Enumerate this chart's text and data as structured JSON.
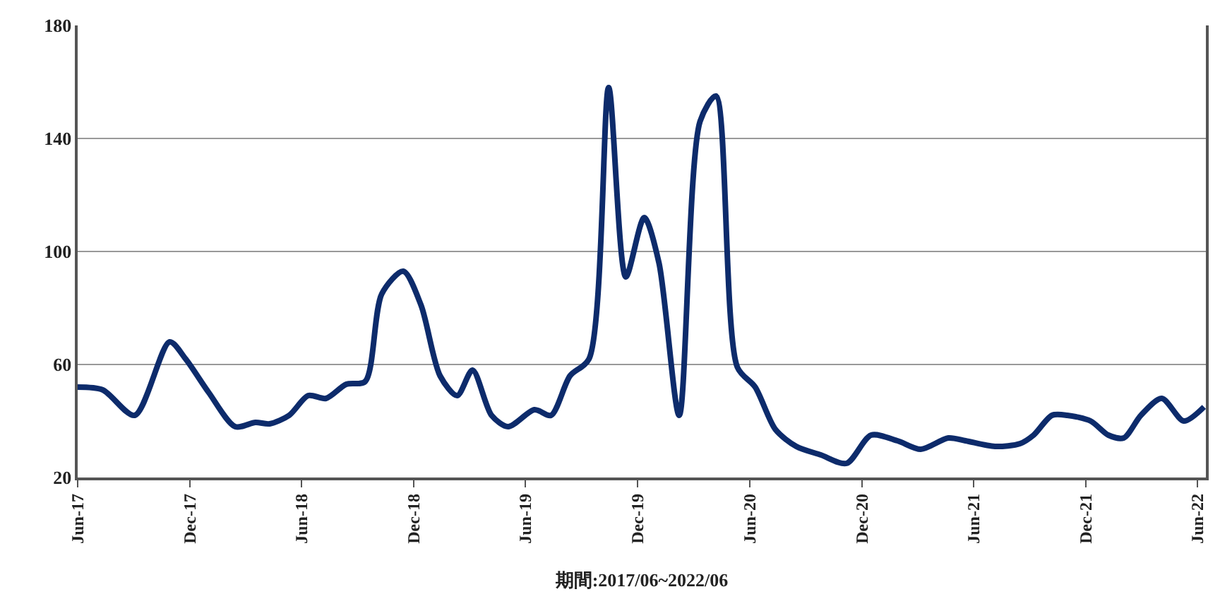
{
  "chart_data": {
    "type": "line",
    "xlabel": "期間:2017/06~2022/06",
    "x": [
      "2017-06-01",
      "2017-07-12",
      "2017-09-02",
      "2017-10-29",
      "2017-11-24",
      "2018-01-01",
      "2018-02-13",
      "2018-03-18",
      "2018-04-10",
      "2018-05-12",
      "2018-06-12",
      "2018-07-11",
      "2018-08-13",
      "2018-09-13",
      "2018-10-10",
      "2018-11-14",
      "2018-12-13",
      "2019-01-13",
      "2019-02-10",
      "2019-03-07",
      "2019-04-07",
      "2019-05-04",
      "2019-06-16",
      "2019-07-13",
      "2019-08-13",
      "2019-09-13",
      "2019-10-15",
      "2019-11-12",
      "2019-12-12",
      "2020-01-05",
      "2020-02-07",
      "2020-03-12",
      "2020-04-07",
      "2020-05-12",
      "2020-06-10",
      "2020-07-13",
      "2020-08-16",
      "2020-09-25",
      "2020-11-06",
      "2020-12-16",
      "2021-01-28",
      "2021-03-07",
      "2021-04-21",
      "2021-05-19",
      "2021-07-06",
      "2021-08-16",
      "2021-09-07",
      "2021-10-07",
      "2021-11-01",
      "2021-12-09",
      "2022-01-07",
      "2022-02-01",
      "2022-03-01",
      "2022-04-04",
      "2022-05-10",
      "2022-06-12"
    ],
    "series": [
      {
        "color": "#0d2b6b",
        "values": [
          52,
          51,
          42,
          68,
          62,
          50,
          38,
          39.5,
          39,
          42,
          49,
          48,
          53,
          54,
          85,
          93,
          81,
          56,
          49,
          58,
          42,
          38,
          44,
          42,
          56,
          62,
          158,
          91,
          112,
          96,
          42,
          146,
          155,
          59,
          52,
          37,
          31,
          28,
          25,
          35,
          33,
          30,
          34,
          33,
          31,
          32,
          35,
          42,
          42,
          40,
          35,
          34,
          42,
          48,
          40,
          45
        ]
      }
    ],
    "xlim": [
      "2017-06-01",
      "2022-06-15"
    ],
    "xticks": [
      {
        "value": "2017-06-01",
        "label": "Jun-17"
      },
      {
        "value": "2017-12-01",
        "label": "Dec-17"
      },
      {
        "value": "2018-06-01",
        "label": "Jun-18"
      },
      {
        "value": "2018-12-01",
        "label": "Dec-18"
      },
      {
        "value": "2019-06-01",
        "label": "Jun-19"
      },
      {
        "value": "2019-12-01",
        "label": "Dec-19"
      },
      {
        "value": "2020-06-01",
        "label": "Jun-20"
      },
      {
        "value": "2020-12-01",
        "label": "Dec-20"
      },
      {
        "value": "2021-06-01",
        "label": "Jun-21"
      },
      {
        "value": "2021-12-01",
        "label": "Dec-21"
      },
      {
        "value": "2022-06-01",
        "label": "Jun-22"
      }
    ],
    "ylim": [
      20,
      180
    ],
    "yticks": [
      20,
      60,
      100,
      140,
      180
    ],
    "grid": "y",
    "marker": "none",
    "line_style": "solid"
  }
}
